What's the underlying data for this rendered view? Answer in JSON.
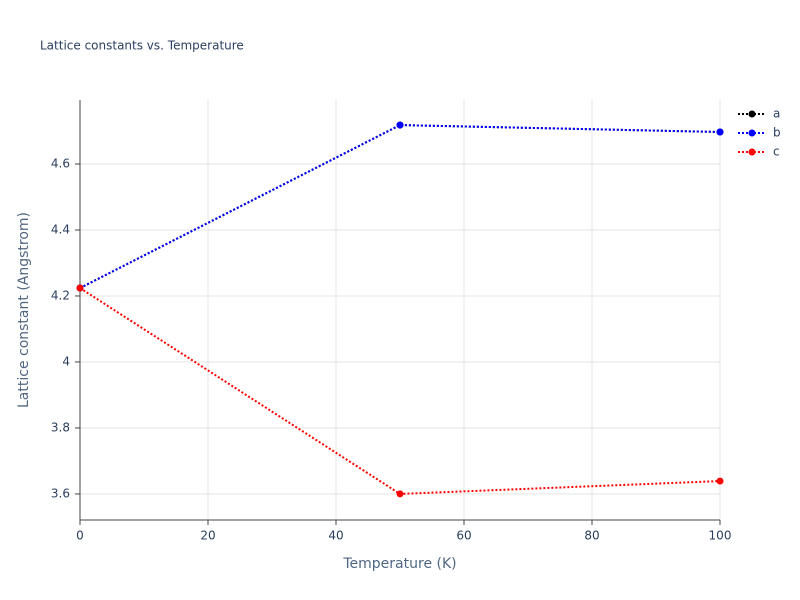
{
  "chart_data": {
    "type": "line",
    "title": "Lattice constants vs. Temperature",
    "x_label": "Temperature (K)",
    "y_label": "Lattice constant (Angstrom)",
    "x": [
      0,
      50,
      100
    ],
    "series": [
      {
        "name": "a",
        "color": "#000000",
        "values": [
          4.224,
          4.718,
          4.697
        ]
      },
      {
        "name": "b",
        "color": "#0000ff",
        "values": [
          4.224,
          4.718,
          4.697
        ]
      },
      {
        "name": "c",
        "color": "#ff0000",
        "values": [
          4.224,
          3.6,
          3.639
        ]
      }
    ],
    "line_style": "dot",
    "xlim": [
      0,
      100
    ],
    "xticks": [
      0,
      20,
      40,
      60,
      80,
      100
    ],
    "ylim": [
      3.521,
      4.794
    ],
    "yticks": [
      3.6,
      3.8,
      4,
      4.2,
      4.4,
      4.6
    ],
    "grid": true,
    "legend": "top-right"
  }
}
